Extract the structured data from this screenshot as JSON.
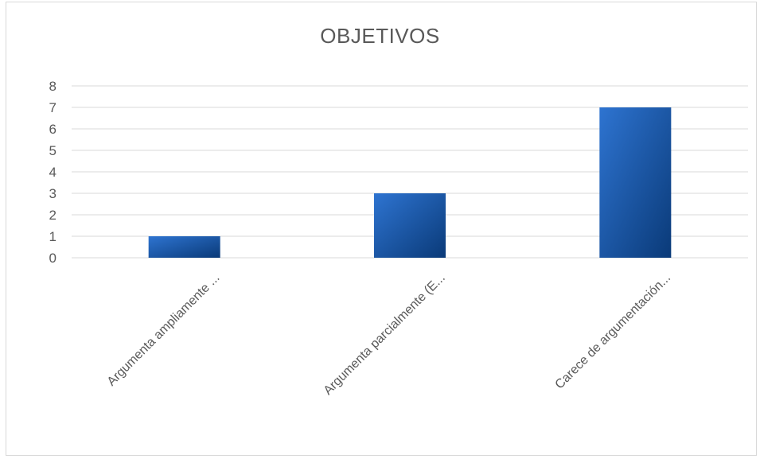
{
  "chart_data": {
    "type": "bar",
    "title": "OBJETIVOS",
    "categories": [
      "Argumenta ampliamente ...",
      "Argumenta parcialmente (E...",
      "Carece de argumentación..."
    ],
    "series": [
      {
        "values": [
          1,
          3,
          7
        ]
      }
    ],
    "ylim": [
      0,
      8
    ],
    "yticks": [
      0,
      1,
      2,
      3,
      4,
      5,
      6,
      7,
      8
    ],
    "grid": true,
    "legend": "none",
    "colors": {
      "bar_light": "#2e74d1",
      "bar_dark": "#0a3a78",
      "grid": "#d9d9d9",
      "text": "#595959"
    }
  }
}
